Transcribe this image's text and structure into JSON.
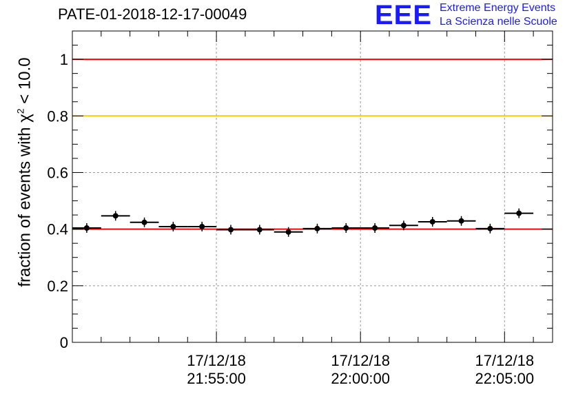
{
  "title": "PATE-01-2018-12-17-00049",
  "logo": {
    "mark": "EEE",
    "line1": "Extreme Energy Events",
    "line2": "La Scienza nelle Scuole",
    "color": "#1a1aff"
  },
  "chart_data": {
    "type": "scatter",
    "title": "PATE-01-2018-12-17-00049",
    "ylabel_prefix": "fraction of events with ",
    "ylabel_symbol": "χ",
    "ylabel_sup": "2",
    "ylabel_suffix": " < 10.0",
    "xlabel": "",
    "x_unit": "time",
    "xlim": [
      "21:50:00",
      "22:06:40"
    ],
    "ylim": [
      0,
      1.1
    ],
    "y_ticks": [
      0,
      0.2,
      0.4,
      0.6,
      0.8,
      1
    ],
    "y_tick_labels": [
      "0",
      "0.2",
      "0.4",
      "0.6",
      "0.8",
      "1"
    ],
    "x_ticks": [
      {
        "t": "21:55:00",
        "date": "17/12/18",
        "time": "21:55:00"
      },
      {
        "t": "22:00:00",
        "date": "17/12/18",
        "time": "22:00:00"
      },
      {
        "t": "22:05:00",
        "date": "17/12/18",
        "time": "22:05:00"
      }
    ],
    "grid": true,
    "reference_lines": [
      {
        "y": 1.0,
        "color": "#ff0000"
      },
      {
        "y": 0.8,
        "color": "#ffcc00"
      },
      {
        "y": 0.4,
        "color": "#ff0000"
      }
    ],
    "bin_width_seconds": 60,
    "points": [
      {
        "x": "21:50:30",
        "y": 0.404
      },
      {
        "x": "21:51:30",
        "y": 0.447
      },
      {
        "x": "21:52:30",
        "y": 0.424
      },
      {
        "x": "21:53:30",
        "y": 0.409
      },
      {
        "x": "21:54:30",
        "y": 0.409
      },
      {
        "x": "21:55:30",
        "y": 0.398
      },
      {
        "x": "21:56:30",
        "y": 0.398
      },
      {
        "x": "21:57:30",
        "y": 0.39
      },
      {
        "x": "21:58:30",
        "y": 0.402
      },
      {
        "x": "21:59:30",
        "y": 0.404
      },
      {
        "x": "22:00:30",
        "y": 0.404
      },
      {
        "x": "22:01:30",
        "y": 0.413
      },
      {
        "x": "22:02:30",
        "y": 0.426
      },
      {
        "x": "22:03:30",
        "y": 0.429
      },
      {
        "x": "22:04:30",
        "y": 0.402
      },
      {
        "x": "22:05:30",
        "y": 0.456
      }
    ],
    "marker_color": "#000000"
  }
}
